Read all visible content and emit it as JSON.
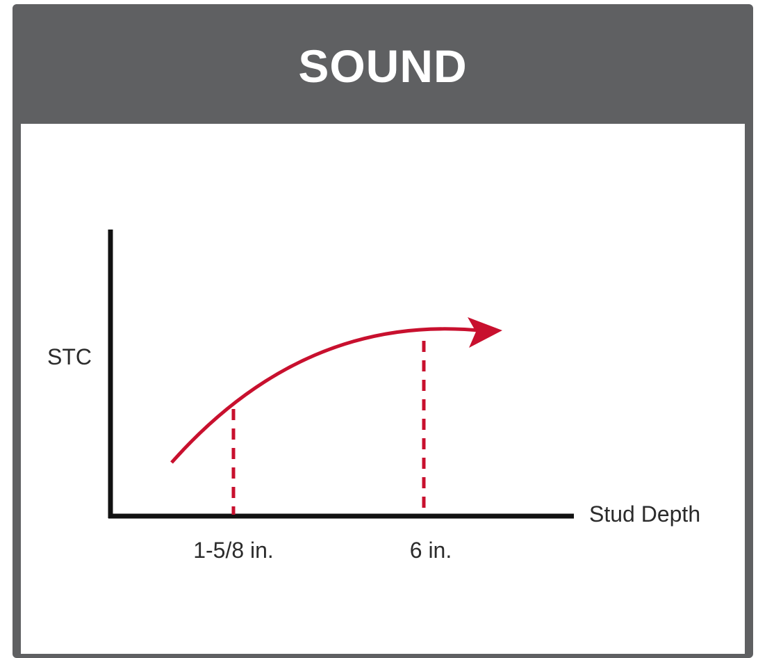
{
  "header": {
    "title": "SOUND"
  },
  "colors": {
    "frame": "#5f6062",
    "curve": "#c8102e",
    "axis": "#111111"
  },
  "chart_data": {
    "type": "line",
    "title": "",
    "xlabel": "Stud Depth",
    "ylabel": "STC",
    "x_tick_labels": [
      "1-5/8 in.",
      "6 in."
    ],
    "series": [
      {
        "values": [],
        "shape": "increasing-concave-with-arrow"
      }
    ],
    "grid": false,
    "legend": "none"
  }
}
